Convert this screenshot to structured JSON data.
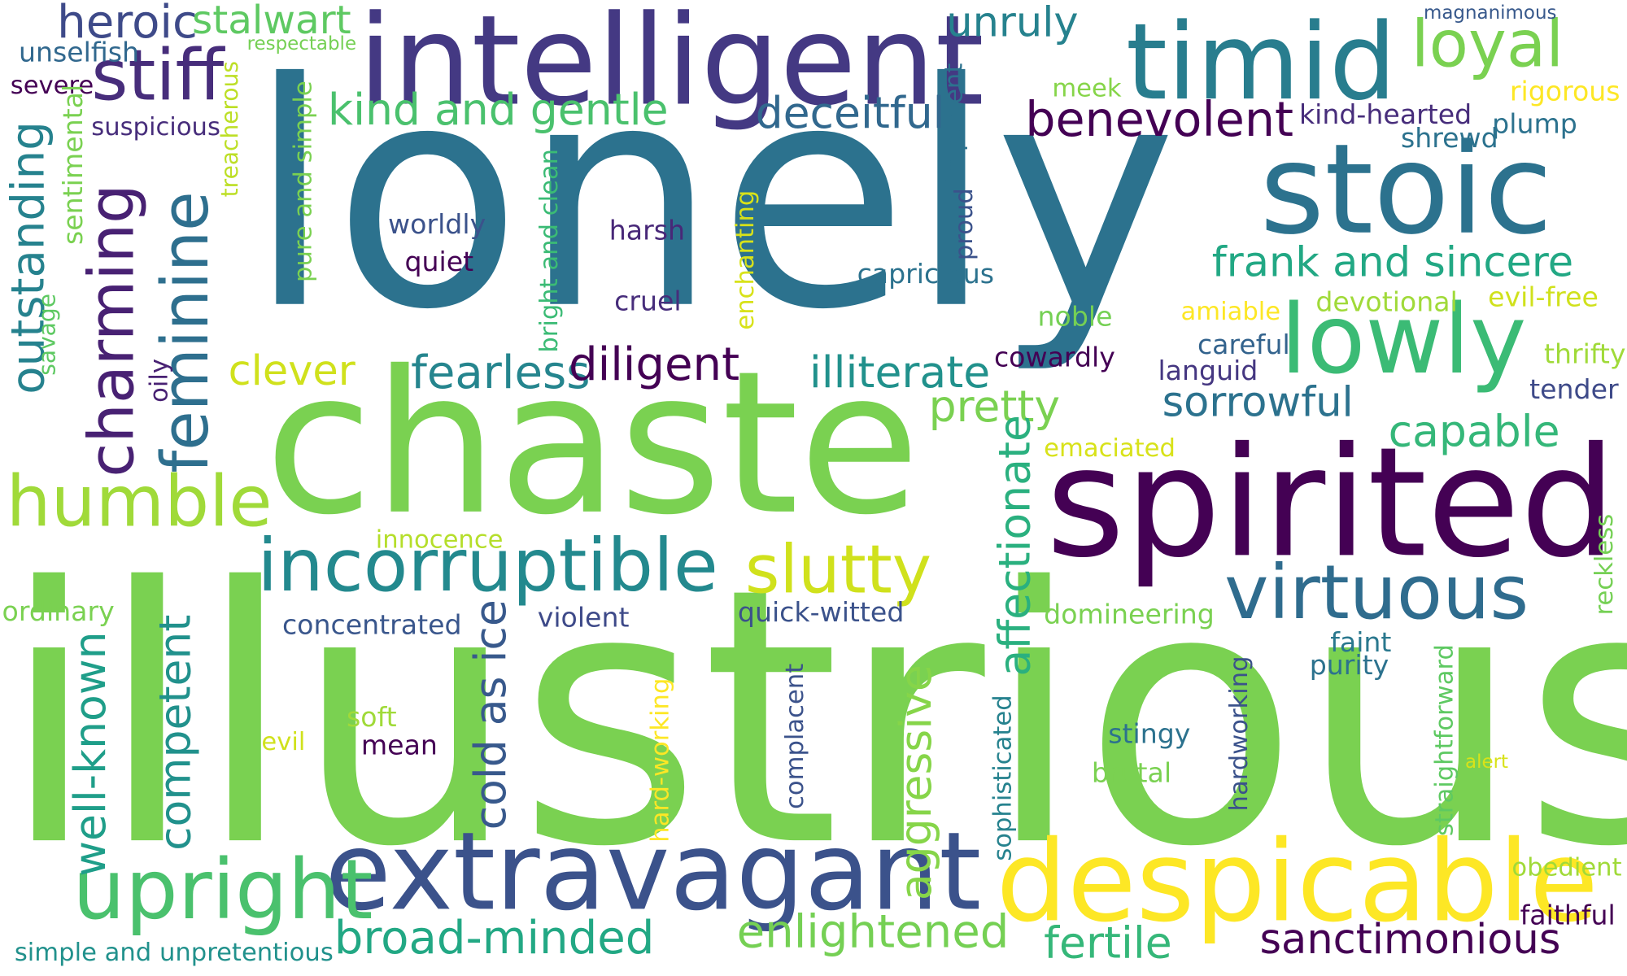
{
  "words": [
    {
      "text": "illustrious",
      "color": "#7ad151"
    },
    {
      "text": "lonely",
      "color": "#2c728e"
    },
    {
      "text": "chaste",
      "color": "#7ad151"
    },
    {
      "text": "spirited",
      "color": "#440154"
    },
    {
      "text": "intelligent",
      "color": "#443983"
    },
    {
      "text": "stoic",
      "color": "#2c728e"
    },
    {
      "text": "timid",
      "color": "#287d8e"
    },
    {
      "text": "extravagant",
      "color": "#3b528b"
    },
    {
      "text": "despicable",
      "color": "#fde725"
    },
    {
      "text": "incorruptible",
      "color": "#23898e"
    },
    {
      "text": "lowly",
      "color": "#3bbb75"
    },
    {
      "text": "upright",
      "color": "#4ac16d"
    },
    {
      "text": "humble",
      "color": "#a0da39"
    },
    {
      "text": "virtuous",
      "color": "#2f6c8e"
    },
    {
      "text": "slutty",
      "color": "#d0e11c"
    },
    {
      "text": "feminine",
      "color": "#2e6f8e"
    },
    {
      "text": "charming",
      "color": "#482173"
    },
    {
      "text": "loyal",
      "color": "#7ad151"
    },
    {
      "text": "stiff",
      "color": "#472d7b"
    },
    {
      "text": "heroic",
      "color": "#3e4a89"
    },
    {
      "text": "stalwart",
      "color": "#5ec962"
    },
    {
      "text": "kind and gentle",
      "color": "#4ac16d"
    },
    {
      "text": "benevolent",
      "color": "#440154"
    },
    {
      "text": "deceitful",
      "color": "#31688e"
    },
    {
      "text": "unruly",
      "color": "#26828e"
    },
    {
      "text": "frank and sincere",
      "color": "#22a884"
    },
    {
      "text": "fearless",
      "color": "#25858e"
    },
    {
      "text": "diligent",
      "color": "#440154"
    },
    {
      "text": "illiterate",
      "color": "#21918c"
    },
    {
      "text": "clever",
      "color": "#d0e11c"
    },
    {
      "text": "pretty",
      "color": "#7ad151"
    },
    {
      "text": "sorrowful",
      "color": "#2c728e"
    },
    {
      "text": "capable",
      "color": "#35b779"
    },
    {
      "text": "enlightened",
      "color": "#75d054"
    },
    {
      "text": "broad-minded",
      "color": "#22a884"
    },
    {
      "text": "sanctimonious",
      "color": "#440154"
    },
    {
      "text": "fertile",
      "color": "#35b779"
    },
    {
      "text": "outstanding",
      "color": "#26828e"
    },
    {
      "text": "affectionate",
      "color": "#2ab07f"
    },
    {
      "text": "cold as ice",
      "color": "#38598c"
    },
    {
      "text": "competent",
      "color": "#21918c"
    },
    {
      "text": "well-known",
      "color": "#1f9e89"
    },
    {
      "text": "aggressive",
      "color": "#86d549"
    },
    {
      "text": "simple and unpretentious",
      "color": "#21918c"
    },
    {
      "text": "concentrated",
      "color": "#39568c"
    },
    {
      "text": "violent",
      "color": "#3e4a89"
    },
    {
      "text": "quick-witted",
      "color": "#3b528b"
    },
    {
      "text": "domineering",
      "color": "#7ad151"
    },
    {
      "text": "innocence",
      "color": "#b5de2b"
    },
    {
      "text": "ordinary",
      "color": "#7ad151"
    },
    {
      "text": "worldly",
      "color": "#3b528b"
    },
    {
      "text": "quiet",
      "color": "#440154"
    },
    {
      "text": "harsh",
      "color": "#482878"
    },
    {
      "text": "cruel",
      "color": "#472d7b"
    },
    {
      "text": "capricious",
      "color": "#2c728e"
    },
    {
      "text": "noble",
      "color": "#75d054"
    },
    {
      "text": "cowardly",
      "color": "#440154"
    },
    {
      "text": "careful",
      "color": "#33638d"
    },
    {
      "text": "languid",
      "color": "#453781"
    },
    {
      "text": "amiable",
      "color": "#fde725"
    },
    {
      "text": "devotional",
      "color": "#a0da39"
    },
    {
      "text": "evil-free",
      "color": "#d0e11c"
    },
    {
      "text": "thrifty",
      "color": "#a0da39"
    },
    {
      "text": "tender",
      "color": "#3e4a89"
    },
    {
      "text": "emaciated",
      "color": "#d8e219"
    },
    {
      "text": "meek",
      "color": "#86d549"
    },
    {
      "text": "kind-hearted",
      "color": "#472d7b"
    },
    {
      "text": "rigorous",
      "color": "#fde725"
    },
    {
      "text": "plump",
      "color": "#2c728e"
    },
    {
      "text": "shrewd",
      "color": "#2c728e"
    },
    {
      "text": "magnanimous",
      "color": "#38598c"
    },
    {
      "text": "unselfish",
      "color": "#31688e"
    },
    {
      "text": "severe",
      "color": "#440154"
    },
    {
      "text": "suspicious",
      "color": "#472d7b"
    },
    {
      "text": "respectable",
      "color": "#75d054"
    },
    {
      "text": "faint",
      "color": "#2a788e"
    },
    {
      "text": "purity",
      "color": "#2c728e"
    },
    {
      "text": "reckless",
      "color": "#75d054"
    },
    {
      "text": "stingy",
      "color": "#2c728e"
    },
    {
      "text": "brutal",
      "color": "#7ad151"
    },
    {
      "text": "alert",
      "color": "#d8e219"
    },
    {
      "text": "obedient",
      "color": "#a0da39"
    },
    {
      "text": "faithful",
      "color": "#440154"
    },
    {
      "text": "soft",
      "color": "#a0da39"
    },
    {
      "text": "mean",
      "color": "#440154"
    },
    {
      "text": "evil",
      "color": "#d0e11c"
    },
    {
      "text": "sentimental",
      "color": "#7ad151"
    },
    {
      "text": "savage",
      "color": "#5ec962"
    },
    {
      "text": "oily",
      "color": "#482173"
    },
    {
      "text": "treacherous",
      "color": "#bddf26"
    },
    {
      "text": "pure and simple",
      "color": "#7ad151"
    },
    {
      "text": "bright and clean",
      "color": "#3bbb75"
    },
    {
      "text": "enchanting",
      "color": "#d8e219"
    },
    {
      "text": "impudent",
      "color": "#2c728e"
    },
    {
      "text": "proud",
      "color": "#3b528b"
    },
    {
      "text": "hard-working",
      "color": "#fde725"
    },
    {
      "text": "complacent",
      "color": "#3b528b"
    },
    {
      "text": "sophisticated",
      "color": "#26828e"
    },
    {
      "text": "hardworking",
      "color": "#3b528b"
    },
    {
      "text": "straightforward",
      "color": "#5ec962"
    }
  ]
}
